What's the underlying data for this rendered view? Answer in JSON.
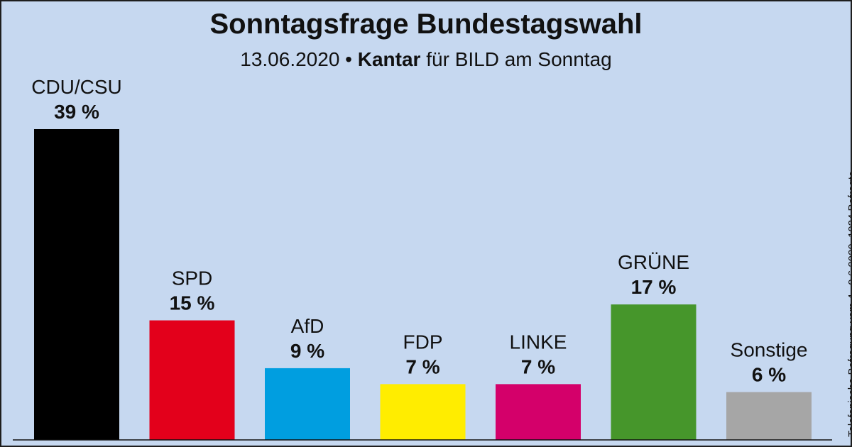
{
  "header": {
    "title": "Sonntagsfrage Bundestagswahl",
    "date": "13.06.2020",
    "separator": "•",
    "institute": "Kantar",
    "client": "für BILD am Sonntag"
  },
  "side_note": "Telefonische Befragung vom 4.–9.6.2020, 1934 Befragte",
  "chart_data": {
    "type": "bar",
    "title": "Sonntagsfrage Bundestagswahl",
    "subtitle": "13.06.2020 • Kantar für BILD am Sonntag",
    "xlabel": "",
    "ylabel": "",
    "unit": "%",
    "ylim": [
      0,
      39
    ],
    "grid": false,
    "categories": [
      "CDU/CSU",
      "SPD",
      "AfD",
      "FDP",
      "LINKE",
      "GRÜNE",
      "Sonstige"
    ],
    "values": [
      39,
      15,
      9,
      7,
      7,
      17,
      6
    ],
    "value_labels": [
      "39 %",
      "15 %",
      "9 %",
      "7 %",
      "7 %",
      "17 %",
      "6 %"
    ],
    "colors": [
      "#000000",
      "#e3001b",
      "#009ee0",
      "#ffed00",
      "#d4006a",
      "#46962b",
      "#a6a6a6"
    ]
  }
}
